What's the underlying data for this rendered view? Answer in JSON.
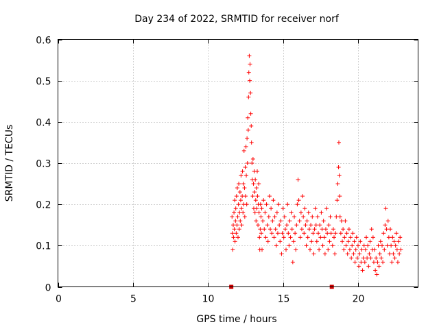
{
  "chart_data": {
    "type": "scatter",
    "title": "Day 234 of 2022, SRMTID for receiver norf",
    "xlabel": "GPS time / hours",
    "ylabel": "SRMTID / TECUs",
    "xlim": [
      0,
      24
    ],
    "ylim": [
      0,
      0.6
    ],
    "xticks": [
      0,
      5,
      10,
      15,
      20
    ],
    "xtick_labels": [
      "0",
      "5",
      "10",
      "15",
      "20"
    ],
    "yticks": [
      0,
      0.1,
      0.2,
      0.3,
      0.4,
      0.5,
      0.6
    ],
    "ytick_labels": [
      "0",
      "0.1",
      "0.2",
      "0.3",
      "0.4",
      "0.5",
      "0.6"
    ],
    "grid": true,
    "marker": "+",
    "marker_color": "#ff0000",
    "gap_marker_color": "#cc0000",
    "gap_markers": [
      {
        "x": 11.55,
        "y": 0.0
      },
      {
        "x": 18.25,
        "y": 0.0
      }
    ],
    "series": [
      {
        "name": "SRMTID",
        "points": [
          [
            11.6,
            0.17
          ],
          [
            11.62,
            0.13
          ],
          [
            11.65,
            0.09
          ],
          [
            11.68,
            0.15
          ],
          [
            11.7,
            0.12
          ],
          [
            11.73,
            0.18
          ],
          [
            11.75,
            0.14
          ],
          [
            11.78,
            0.21
          ],
          [
            11.8,
            0.11
          ],
          [
            11.83,
            0.16
          ],
          [
            11.85,
            0.19
          ],
          [
            11.88,
            0.13
          ],
          [
            11.9,
            0.22
          ],
          [
            11.93,
            0.15
          ],
          [
            11.95,
            0.24
          ],
          [
            11.98,
            0.17
          ],
          [
            12.0,
            0.12
          ],
          [
            12.03,
            0.2
          ],
          [
            12.05,
            0.25
          ],
          [
            12.08,
            0.14
          ],
          [
            12.1,
            0.18
          ],
          [
            12.13,
            0.23
          ],
          [
            12.15,
            0.16
          ],
          [
            12.18,
            0.21
          ],
          [
            12.2,
            0.27
          ],
          [
            12.23,
            0.19
          ],
          [
            12.25,
            0.15
          ],
          [
            12.28,
            0.22
          ],
          [
            12.3,
            0.28
          ],
          [
            12.33,
            0.18
          ],
          [
            12.35,
            0.25
          ],
          [
            12.38,
            0.2
          ],
          [
            12.4,
            0.33
          ],
          [
            12.43,
            0.24
          ],
          [
            12.45,
            0.17
          ],
          [
            12.48,
            0.29
          ],
          [
            12.5,
            0.22
          ],
          [
            12.53,
            0.34
          ],
          [
            12.55,
            0.27
          ],
          [
            12.58,
            0.2
          ],
          [
            12.6,
            0.36
          ],
          [
            12.63,
            0.3
          ],
          [
            12.65,
            0.41
          ],
          [
            12.68,
            0.38
          ],
          [
            12.7,
            0.46
          ],
          [
            12.72,
            0.52
          ],
          [
            12.75,
            0.56
          ],
          [
            12.78,
            0.5
          ],
          [
            12.8,
            0.54
          ],
          [
            12.83,
            0.47
          ],
          [
            12.85,
            0.42
          ],
          [
            12.88,
            0.39
          ],
          [
            12.9,
            0.35
          ],
          [
            12.93,
            0.3
          ],
          [
            12.95,
            0.26
          ],
          [
            12.98,
            0.22
          ],
          [
            13.0,
            0.31
          ],
          [
            13.03,
            0.25
          ],
          [
            13.05,
            0.19
          ],
          [
            13.08,
            0.28
          ],
          [
            13.1,
            0.23
          ],
          [
            13.13,
            0.18
          ],
          [
            13.15,
            0.26
          ],
          [
            13.18,
            0.21
          ],
          [
            13.2,
            0.16
          ],
          [
            13.23,
            0.24
          ],
          [
            13.25,
            0.19
          ],
          [
            13.28,
            0.28
          ],
          [
            13.3,
            0.22
          ],
          [
            13.33,
            0.15
          ],
          [
            13.35,
            0.2
          ],
          [
            13.38,
            0.25
          ],
          [
            13.4,
            0.18
          ],
          [
            13.43,
            0.12
          ],
          [
            13.45,
            0.09
          ],
          [
            13.48,
            0.14
          ],
          [
            13.5,
            0.2
          ],
          [
            13.53,
            0.17
          ],
          [
            13.55,
            0.13
          ],
          [
            13.58,
            0.19
          ],
          [
            13.6,
            0.09
          ],
          [
            13.65,
            0.16
          ],
          [
            13.7,
            0.21
          ],
          [
            13.75,
            0.14
          ],
          [
            13.8,
            0.18
          ],
          [
            13.85,
            0.12
          ],
          [
            13.9,
            0.2
          ],
          [
            13.95,
            0.15
          ],
          [
            14.0,
            0.11
          ],
          [
            14.05,
            0.17
          ],
          [
            14.1,
            0.22
          ],
          [
            14.15,
            0.14
          ],
          [
            14.2,
            0.19
          ],
          [
            14.25,
            0.13
          ],
          [
            14.3,
            0.16
          ],
          [
            14.35,
            0.21
          ],
          [
            14.4,
            0.12
          ],
          [
            14.45,
            0.17
          ],
          [
            14.5,
            0.14
          ],
          [
            14.55,
            0.1
          ],
          [
            14.6,
            0.18
          ],
          [
            14.65,
            0.13
          ],
          [
            14.7,
            0.2
          ],
          [
            14.75,
            0.15
          ],
          [
            14.8,
            0.11
          ],
          [
            14.85,
            0.16
          ],
          [
            14.9,
            0.08
          ],
          [
            14.95,
            0.13
          ],
          [
            15.0,
            0.19
          ],
          [
            15.05,
            0.12
          ],
          [
            15.1,
            0.17
          ],
          [
            15.15,
            0.14
          ],
          [
            15.2,
            0.09
          ],
          [
            15.25,
            0.15
          ],
          [
            15.3,
            0.2
          ],
          [
            15.35,
            0.13
          ],
          [
            15.4,
            0.1
          ],
          [
            15.45,
            0.16
          ],
          [
            15.5,
            0.12
          ],
          [
            15.55,
            0.18
          ],
          [
            15.6,
            0.14
          ],
          [
            15.65,
            0.06
          ],
          [
            15.7,
            0.11
          ],
          [
            15.75,
            0.17
          ],
          [
            15.8,
            0.13
          ],
          [
            15.85,
            0.09
          ],
          [
            15.9,
            0.15
          ],
          [
            15.95,
            0.2
          ],
          [
            16.0,
            0.26
          ],
          [
            16.05,
            0.21
          ],
          [
            16.1,
            0.16
          ],
          [
            16.15,
            0.12
          ],
          [
            16.2,
            0.18
          ],
          [
            16.25,
            0.14
          ],
          [
            16.3,
            0.22
          ],
          [
            16.35,
            0.17
          ],
          [
            16.4,
            0.13
          ],
          [
            16.45,
            0.19
          ],
          [
            16.5,
            0.15
          ],
          [
            16.55,
            0.1
          ],
          [
            16.6,
            0.16
          ],
          [
            16.65,
            0.12
          ],
          [
            16.7,
            0.18
          ],
          [
            16.75,
            0.14
          ],
          [
            16.8,
            0.09
          ],
          [
            16.85,
            0.15
          ],
          [
            16.9,
            0.11
          ],
          [
            16.95,
            0.17
          ],
          [
            17.0,
            0.13
          ],
          [
            17.05,
            0.08
          ],
          [
            17.1,
            0.14
          ],
          [
            17.15,
            0.19
          ],
          [
            17.2,
            0.15
          ],
          [
            17.25,
            0.11
          ],
          [
            17.3,
            0.17
          ],
          [
            17.35,
            0.13
          ],
          [
            17.4,
            0.09
          ],
          [
            17.45,
            0.15
          ],
          [
            17.5,
            0.12
          ],
          [
            17.55,
            0.18
          ],
          [
            17.6,
            0.14
          ],
          [
            17.65,
            0.1
          ],
          [
            17.7,
            0.16
          ],
          [
            17.75,
            0.12
          ],
          [
            17.8,
            0.08
          ],
          [
            17.85,
            0.14
          ],
          [
            17.9,
            0.19
          ],
          [
            17.95,
            0.13
          ],
          [
            18.0,
            0.09
          ],
          [
            18.05,
            0.15
          ],
          [
            18.1,
            0.11
          ],
          [
            18.15,
            0.17
          ],
          [
            18.2,
            0.13
          ],
          [
            18.3,
            0.1
          ],
          [
            18.35,
            0.14
          ],
          [
            18.4,
            0.12
          ],
          [
            18.45,
            0.08
          ],
          [
            18.5,
            0.13
          ],
          [
            18.55,
            0.17
          ],
          [
            18.6,
            0.21
          ],
          [
            18.65,
            0.25
          ],
          [
            18.7,
            0.29
          ],
          [
            18.72,
            0.35
          ],
          [
            18.75,
            0.27
          ],
          [
            18.78,
            0.22
          ],
          [
            18.8,
            0.17
          ],
          [
            18.85,
            0.13
          ],
          [
            18.9,
            0.16
          ],
          [
            18.95,
            0.11
          ],
          [
            19.0,
            0.14
          ],
          [
            19.05,
            0.09
          ],
          [
            19.1,
            0.12
          ],
          [
            19.15,
            0.16
          ],
          [
            19.2,
            0.1
          ],
          [
            19.25,
            0.13
          ],
          [
            19.3,
            0.08
          ],
          [
            19.35,
            0.11
          ],
          [
            19.4,
            0.14
          ],
          [
            19.45,
            0.09
          ],
          [
            19.5,
            0.12
          ],
          [
            19.55,
            0.07
          ],
          [
            19.6,
            0.1
          ],
          [
            19.65,
            0.13
          ],
          [
            19.7,
            0.08
          ],
          [
            19.75,
            0.11
          ],
          [
            19.8,
            0.06
          ],
          [
            19.85,
            0.09
          ],
          [
            19.9,
            0.12
          ],
          [
            19.95,
            0.07
          ],
          [
            20.0,
            0.1
          ],
          [
            20.05,
            0.05
          ],
          [
            20.1,
            0.08
          ],
          [
            20.15,
            0.11
          ],
          [
            20.2,
            0.06
          ],
          [
            20.25,
            0.09
          ],
          [
            20.3,
            0.04
          ],
          [
            20.35,
            0.07
          ],
          [
            20.4,
            0.1
          ],
          [
            20.45,
            0.06
          ],
          [
            20.5,
            0.09
          ],
          [
            20.55,
            0.12
          ],
          [
            20.6,
            0.07
          ],
          [
            20.65,
            0.1
          ],
          [
            20.7,
            0.05
          ],
          [
            20.75,
            0.08
          ],
          [
            20.8,
            0.11
          ],
          [
            20.85,
            0.07
          ],
          [
            20.9,
            0.14
          ],
          [
            20.95,
            0.09
          ],
          [
            21.0,
            0.12
          ],
          [
            21.05,
            0.06
          ],
          [
            21.1,
            0.09
          ],
          [
            21.15,
            0.04
          ],
          [
            21.2,
            0.07
          ],
          [
            21.25,
            0.03
          ],
          [
            21.3,
            0.06
          ],
          [
            21.35,
            0.1
          ],
          [
            21.4,
            0.05
          ],
          [
            21.45,
            0.08
          ],
          [
            21.5,
            0.11
          ],
          [
            21.55,
            0.07
          ],
          [
            21.6,
            0.1
          ],
          [
            21.65,
            0.06
          ],
          [
            21.7,
            0.13
          ],
          [
            21.75,
            0.09
          ],
          [
            21.8,
            0.15
          ],
          [
            21.85,
            0.19
          ],
          [
            21.9,
            0.14
          ],
          [
            21.95,
            0.1
          ],
          [
            22.0,
            0.16
          ],
          [
            22.05,
            0.12
          ],
          [
            22.1,
            0.08
          ],
          [
            22.15,
            0.14
          ],
          [
            22.2,
            0.1
          ],
          [
            22.25,
            0.06
          ],
          [
            22.3,
            0.12
          ],
          [
            22.35,
            0.08
          ],
          [
            22.4,
            0.11
          ],
          [
            22.45,
            0.07
          ],
          [
            22.5,
            0.1
          ],
          [
            22.55,
            0.13
          ],
          [
            22.6,
            0.09
          ],
          [
            22.65,
            0.06
          ],
          [
            22.7,
            0.11
          ],
          [
            22.75,
            0.08
          ],
          [
            22.8,
            0.12
          ],
          [
            22.85,
            0.09
          ]
        ]
      }
    ]
  }
}
